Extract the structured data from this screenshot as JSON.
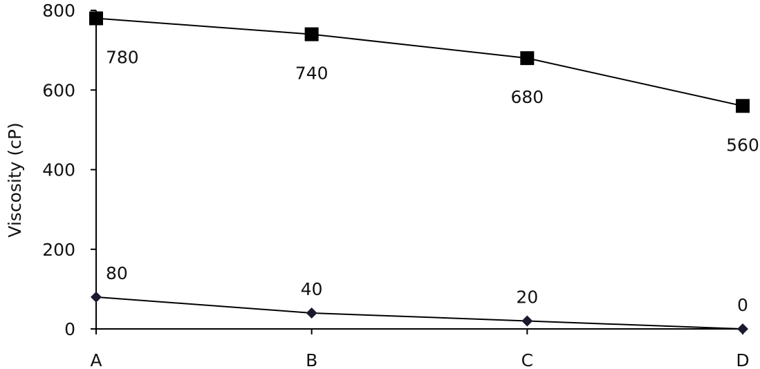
{
  "chart_data": {
    "type": "line",
    "title": "",
    "xlabel": "",
    "ylabel": "Viscosity (cP)",
    "categories": [
      "A",
      "B",
      "C",
      "D"
    ],
    "ylim": [
      0,
      800
    ],
    "yticks": [
      0,
      200,
      400,
      600,
      800
    ],
    "grid": false,
    "legend": "none",
    "series": [
      {
        "values": [
          780,
          740,
          680,
          560
        ],
        "marker": "square",
        "color": "#000000",
        "data_labels": [
          "780",
          "740",
          "680",
          "560"
        ]
      },
      {
        "values": [
          80,
          40,
          20,
          0
        ],
        "marker": "diamond",
        "color": "#1a1a2e",
        "data_labels": [
          "80",
          "40",
          "20",
          "0"
        ]
      }
    ]
  }
}
